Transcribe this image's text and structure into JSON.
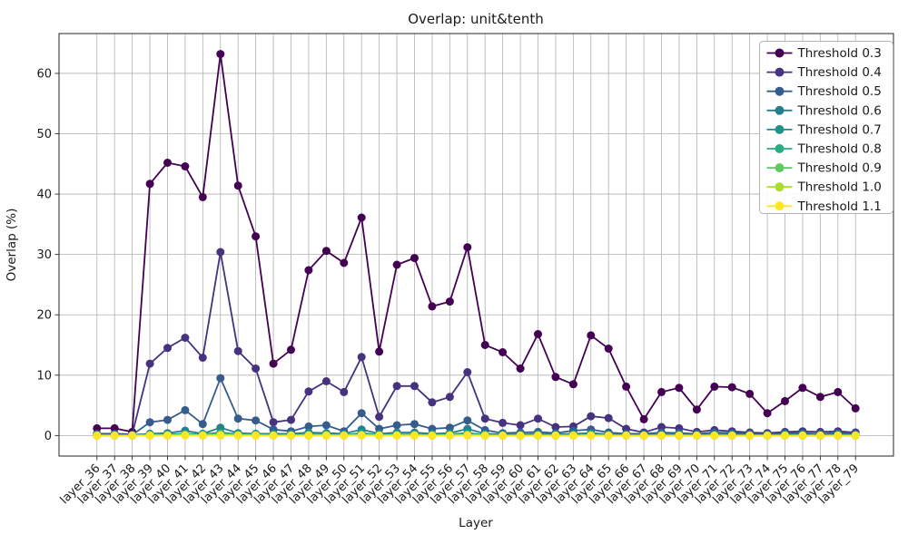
{
  "chart_data": {
    "type": "line",
    "title": "Overlap: unit&tenth",
    "xlabel": "Layer",
    "ylabel": "Overlap (%)",
    "grid": true,
    "legend_position": "upper right",
    "ylim": [
      -3.4,
      66.6
    ],
    "y_ticks": [
      0,
      10,
      20,
      30,
      40,
      50,
      60
    ],
    "categories": [
      "layer_36",
      "layer_37",
      "layer_38",
      "layer_39",
      "layer_40",
      "layer_41",
      "layer_42",
      "layer_43",
      "layer_44",
      "layer_45",
      "layer_46",
      "layer_47",
      "layer_48",
      "layer_49",
      "layer_50",
      "layer_51",
      "layer_52",
      "layer_53",
      "layer_54",
      "layer_55",
      "layer_56",
      "layer_57",
      "layer_58",
      "layer_59",
      "layer_60",
      "layer_61",
      "layer_62",
      "layer_63",
      "layer_64",
      "layer_65",
      "layer_66",
      "layer_67",
      "layer_68",
      "layer_69",
      "layer_70",
      "layer_71",
      "layer_72",
      "layer_73",
      "layer_74",
      "layer_75",
      "layer_76",
      "layer_77",
      "layer_78",
      "layer_79"
    ],
    "series": [
      {
        "name": "Threshold 0.3",
        "color": "#440154",
        "values": [
          1.2,
          1.2,
          0.6,
          41.7,
          45.2,
          44.6,
          39.5,
          63.2,
          41.4,
          33.0,
          11.9,
          14.2,
          27.4,
          30.6,
          28.6,
          36.1,
          13.9,
          28.3,
          29.4,
          21.4,
          22.2,
          31.2,
          15.0,
          13.8,
          11.1,
          16.8,
          9.7,
          8.5,
          16.6,
          14.4,
          8.1,
          2.7,
          7.2,
          7.9,
          4.3,
          8.1,
          8.0,
          6.9,
          3.7,
          5.7,
          7.9,
          6.4,
          7.2,
          4.5
        ]
      },
      {
        "name": "Threshold 0.4",
        "color": "#46327e",
        "values": [
          0.3,
          0.3,
          0.2,
          11.9,
          14.5,
          16.2,
          12.9,
          30.4,
          14.0,
          11.1,
          2.2,
          2.6,
          7.3,
          9.0,
          7.2,
          13.0,
          3.1,
          8.2,
          8.2,
          5.5,
          6.4,
          10.5,
          2.8,
          2.1,
          1.7,
          2.8,
          1.4,
          1.5,
          3.2,
          2.9,
          1.1,
          0.5,
          1.4,
          1.2,
          0.6,
          0.9,
          0.7,
          0.5,
          0.4,
          0.6,
          0.7,
          0.6,
          0.7,
          0.5
        ]
      },
      {
        "name": "Threshold 0.5",
        "color": "#365c8d",
        "values": [
          0.2,
          0.2,
          0.1,
          2.2,
          2.6,
          4.2,
          1.9,
          9.5,
          2.8,
          2.5,
          1.0,
          0.7,
          1.5,
          1.7,
          0.7,
          3.7,
          1.1,
          1.7,
          1.9,
          1.1,
          1.3,
          2.5,
          0.9,
          0.4,
          0.5,
          0.6,
          0.4,
          0.8,
          1.0,
          0.5,
          0.3,
          0.3,
          0.5,
          0.4,
          0.3,
          0.5,
          0.4,
          0.3,
          0.2,
          0.4,
          0.4,
          0.3,
          0.4,
          0.3
        ]
      },
      {
        "name": "Threshold 0.6",
        "color": "#277f8e",
        "values": [
          0.1,
          0.1,
          0.1,
          0.3,
          0.4,
          0.8,
          0.3,
          1.3,
          0.4,
          0.3,
          0.3,
          0.3,
          0.5,
          0.4,
          0.3,
          1.0,
          0.3,
          0.5,
          0.5,
          0.3,
          0.4,
          1.1,
          0.3,
          0.2,
          0.2,
          0.3,
          0.2,
          0.3,
          0.4,
          0.2,
          0.1,
          0.1,
          0.2,
          0.2,
          0.1,
          0.2,
          0.2,
          0.1,
          0.1,
          0.2,
          0.2,
          0.1,
          0.2,
          0.1
        ]
      },
      {
        "name": "Threshold 0.7",
        "color": "#21918c",
        "values": [
          0.1,
          0.1,
          0.0,
          0.2,
          0.2,
          0.3,
          0.2,
          0.5,
          0.2,
          0.2,
          0.1,
          0.1,
          0.2,
          0.2,
          0.1,
          0.4,
          0.1,
          0.2,
          0.2,
          0.1,
          0.2,
          0.4,
          0.1,
          0.1,
          0.1,
          0.1,
          0.1,
          0.1,
          0.2,
          0.1,
          0.1,
          0.0,
          0.1,
          0.1,
          0.0,
          0.1,
          0.1,
          0.0,
          0.0,
          0.1,
          0.1,
          0.0,
          0.1,
          0.0
        ]
      },
      {
        "name": "Threshold 0.8",
        "color": "#27ad81",
        "values": [
          0.0,
          0.0,
          0.0,
          0.1,
          0.1,
          0.2,
          0.1,
          0.3,
          0.1,
          0.1,
          0.1,
          0.1,
          0.1,
          0.1,
          0.1,
          0.2,
          0.1,
          0.1,
          0.1,
          0.1,
          0.1,
          0.2,
          0.1,
          0.0,
          0.0,
          0.1,
          0.0,
          0.1,
          0.1,
          0.0,
          0.0,
          0.0,
          0.0,
          0.0,
          0.0,
          0.0,
          0.0,
          0.0,
          0.0,
          0.0,
          0.0,
          0.0,
          0.0,
          0.0
        ]
      },
      {
        "name": "Threshold 0.9",
        "color": "#5ec962",
        "values": [
          0.0,
          0.0,
          0.0,
          0.1,
          0.1,
          0.1,
          0.1,
          0.2,
          0.1,
          0.1,
          0.0,
          0.0,
          0.1,
          0.1,
          0.0,
          0.1,
          0.0,
          0.1,
          0.1,
          0.0,
          0.1,
          0.1,
          0.0,
          0.0,
          0.0,
          0.0,
          0.0,
          0.0,
          0.1,
          0.0,
          0.0,
          0.0,
          0.0,
          0.0,
          0.0,
          0.0,
          0.0,
          0.0,
          0.0,
          0.0,
          0.0,
          0.0,
          0.0,
          0.0
        ]
      },
      {
        "name": "Threshold 1.0",
        "color": "#aadc32",
        "values": [
          0.0,
          0.0,
          0.0,
          0.0,
          0.0,
          0.1,
          0.0,
          0.1,
          0.0,
          0.0,
          0.0,
          0.0,
          0.0,
          0.0,
          0.0,
          0.1,
          0.0,
          0.0,
          0.0,
          0.0,
          0.0,
          0.1,
          0.0,
          0.0,
          0.0,
          0.0,
          0.0,
          0.0,
          0.0,
          0.0,
          0.0,
          0.0,
          0.0,
          0.0,
          0.0,
          0.0,
          0.0,
          0.0,
          0.0,
          0.0,
          0.0,
          0.0,
          0.0,
          0.0
        ]
      },
      {
        "name": "Threshold 1.1",
        "color": "#fde725",
        "values": [
          0.0,
          0.0,
          0.0,
          0.0,
          0.0,
          0.0,
          0.0,
          0.0,
          0.0,
          0.0,
          0.0,
          0.0,
          0.0,
          0.0,
          0.0,
          0.0,
          0.0,
          0.0,
          0.0,
          0.0,
          0.0,
          0.0,
          0.0,
          0.0,
          0.0,
          0.0,
          0.0,
          0.0,
          0.0,
          0.0,
          0.0,
          0.0,
          0.0,
          0.0,
          0.0,
          0.0,
          0.0,
          0.0,
          0.0,
          0.0,
          0.0,
          0.0,
          0.0,
          0.0
        ]
      }
    ]
  }
}
